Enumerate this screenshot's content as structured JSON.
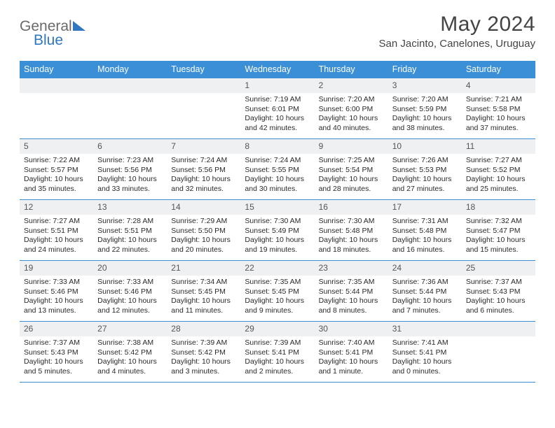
{
  "brand": {
    "word1": "General",
    "word2": "Blue",
    "word1_color": "#6a6a6a",
    "word2_color": "#2f77c0",
    "accent_color": "#2f77c0"
  },
  "title": "May 2024",
  "location": "San Jacinto, Canelones, Uruguay",
  "header_bg": "#3b8fd6",
  "daynum_bg": "#eef0f1",
  "border_color": "#3b8fd6",
  "weekdays": [
    "Sunday",
    "Monday",
    "Tuesday",
    "Wednesday",
    "Thursday",
    "Friday",
    "Saturday"
  ],
  "weeks": [
    [
      null,
      null,
      null,
      {
        "n": "1",
        "sr": "7:19 AM",
        "ss": "6:01 PM",
        "dl": "10 hours and 42 minutes."
      },
      {
        "n": "2",
        "sr": "7:20 AM",
        "ss": "6:00 PM",
        "dl": "10 hours and 40 minutes."
      },
      {
        "n": "3",
        "sr": "7:20 AM",
        "ss": "5:59 PM",
        "dl": "10 hours and 38 minutes."
      },
      {
        "n": "4",
        "sr": "7:21 AM",
        "ss": "5:58 PM",
        "dl": "10 hours and 37 minutes."
      }
    ],
    [
      {
        "n": "5",
        "sr": "7:22 AM",
        "ss": "5:57 PM",
        "dl": "10 hours and 35 minutes."
      },
      {
        "n": "6",
        "sr": "7:23 AM",
        "ss": "5:56 PM",
        "dl": "10 hours and 33 minutes."
      },
      {
        "n": "7",
        "sr": "7:24 AM",
        "ss": "5:56 PM",
        "dl": "10 hours and 32 minutes."
      },
      {
        "n": "8",
        "sr": "7:24 AM",
        "ss": "5:55 PM",
        "dl": "10 hours and 30 minutes."
      },
      {
        "n": "9",
        "sr": "7:25 AM",
        "ss": "5:54 PM",
        "dl": "10 hours and 28 minutes."
      },
      {
        "n": "10",
        "sr": "7:26 AM",
        "ss": "5:53 PM",
        "dl": "10 hours and 27 minutes."
      },
      {
        "n": "11",
        "sr": "7:27 AM",
        "ss": "5:52 PM",
        "dl": "10 hours and 25 minutes."
      }
    ],
    [
      {
        "n": "12",
        "sr": "7:27 AM",
        "ss": "5:51 PM",
        "dl": "10 hours and 24 minutes."
      },
      {
        "n": "13",
        "sr": "7:28 AM",
        "ss": "5:51 PM",
        "dl": "10 hours and 22 minutes."
      },
      {
        "n": "14",
        "sr": "7:29 AM",
        "ss": "5:50 PM",
        "dl": "10 hours and 20 minutes."
      },
      {
        "n": "15",
        "sr": "7:30 AM",
        "ss": "5:49 PM",
        "dl": "10 hours and 19 minutes."
      },
      {
        "n": "16",
        "sr": "7:30 AM",
        "ss": "5:48 PM",
        "dl": "10 hours and 18 minutes."
      },
      {
        "n": "17",
        "sr": "7:31 AM",
        "ss": "5:48 PM",
        "dl": "10 hours and 16 minutes."
      },
      {
        "n": "18",
        "sr": "7:32 AM",
        "ss": "5:47 PM",
        "dl": "10 hours and 15 minutes."
      }
    ],
    [
      {
        "n": "19",
        "sr": "7:33 AM",
        "ss": "5:46 PM",
        "dl": "10 hours and 13 minutes."
      },
      {
        "n": "20",
        "sr": "7:33 AM",
        "ss": "5:46 PM",
        "dl": "10 hours and 12 minutes."
      },
      {
        "n": "21",
        "sr": "7:34 AM",
        "ss": "5:45 PM",
        "dl": "10 hours and 11 minutes."
      },
      {
        "n": "22",
        "sr": "7:35 AM",
        "ss": "5:45 PM",
        "dl": "10 hours and 9 minutes."
      },
      {
        "n": "23",
        "sr": "7:35 AM",
        "ss": "5:44 PM",
        "dl": "10 hours and 8 minutes."
      },
      {
        "n": "24",
        "sr": "7:36 AM",
        "ss": "5:44 PM",
        "dl": "10 hours and 7 minutes."
      },
      {
        "n": "25",
        "sr": "7:37 AM",
        "ss": "5:43 PM",
        "dl": "10 hours and 6 minutes."
      }
    ],
    [
      {
        "n": "26",
        "sr": "7:37 AM",
        "ss": "5:43 PM",
        "dl": "10 hours and 5 minutes."
      },
      {
        "n": "27",
        "sr": "7:38 AM",
        "ss": "5:42 PM",
        "dl": "10 hours and 4 minutes."
      },
      {
        "n": "28",
        "sr": "7:39 AM",
        "ss": "5:42 PM",
        "dl": "10 hours and 3 minutes."
      },
      {
        "n": "29",
        "sr": "7:39 AM",
        "ss": "5:41 PM",
        "dl": "10 hours and 2 minutes."
      },
      {
        "n": "30",
        "sr": "7:40 AM",
        "ss": "5:41 PM",
        "dl": "10 hours and 1 minute."
      },
      {
        "n": "31",
        "sr": "7:41 AM",
        "ss": "5:41 PM",
        "dl": "10 hours and 0 minutes."
      },
      null
    ]
  ],
  "labels": {
    "sunrise": "Sunrise:",
    "sunset": "Sunset:",
    "daylight": "Daylight:"
  }
}
